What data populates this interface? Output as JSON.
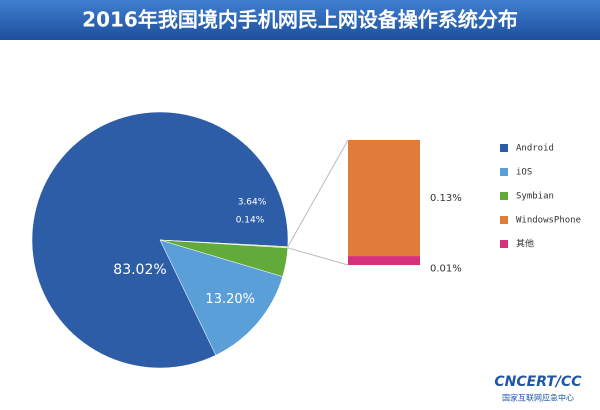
{
  "chart_data": {
    "type": "pie",
    "title": "2016年我国境内手机网民上网设备操作系统分布",
    "categories": [
      "Android",
      "iOS",
      "Symbian",
      null
    ],
    "values": [
      83.02,
      13.2,
      3.64,
      0.14
    ],
    "value_labels": [
      "83.02%",
      "13.20%",
      "3.64%",
      "0.14%"
    ],
    "colors": [
      "#2e5da8",
      "#5b9fd9",
      "#62ab3a",
      "#c9d65a"
    ],
    "breakout": {
      "categories": [
        "WindowsPhone",
        "其他"
      ],
      "values": [
        0.13,
        0.01
      ],
      "value_labels": [
        "0.13%",
        "0.01%"
      ],
      "colors": [
        "#e07c3a",
        "#d4327a"
      ]
    },
    "logo": {
      "name": "CNCERT/CC",
      "subtitle": "国家互联网应急中心"
    }
  }
}
